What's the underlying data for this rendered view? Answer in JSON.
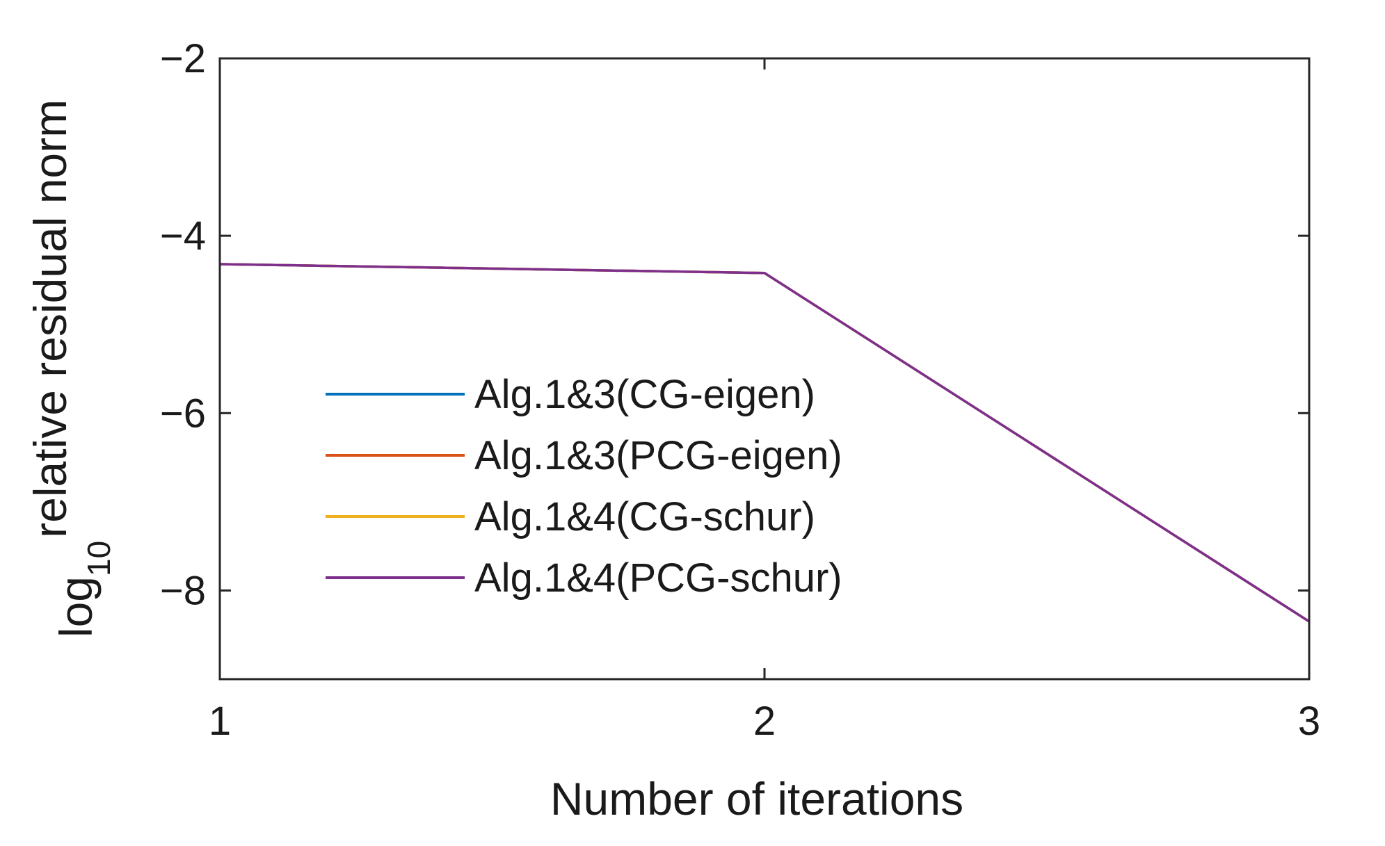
{
  "chart_data": {
    "type": "line",
    "title": "",
    "xlabel": "Number of iterations",
    "ylabel": {
      "prefix": "log",
      "subscript": "10",
      "suffix": "relative residual norm"
    },
    "xlim": [
      1,
      3
    ],
    "ylim": [
      -9,
      -2
    ],
    "xticks": [
      1,
      2,
      3
    ],
    "xtick_labels": [
      "1",
      "2",
      "3"
    ],
    "yticks": [
      -2,
      -4,
      -6,
      -8
    ],
    "ytick_labels": [
      "−2",
      "−4",
      "−6",
      "−8"
    ],
    "grid": false,
    "legend_position": "center-left",
    "x": [
      1,
      2,
      3
    ],
    "series": [
      {
        "name": "Alg.1&3(CG-eigen)",
        "color": "#0072BD",
        "values": [
          -4.32,
          -4.42,
          -8.35
        ]
      },
      {
        "name": "Alg.1&3(PCG-eigen)",
        "color": "#D95319",
        "values": [
          -4.32,
          -4.42,
          -8.35
        ]
      },
      {
        "name": "Alg.1&4(CG-schur)",
        "color": "#EDB120",
        "values": [
          -4.32,
          -4.42,
          -8.35
        ]
      },
      {
        "name": "Alg.1&4(PCG-schur)",
        "color": "#7E2F8E",
        "values": [
          -4.32,
          -4.42,
          -8.35
        ]
      }
    ]
  }
}
